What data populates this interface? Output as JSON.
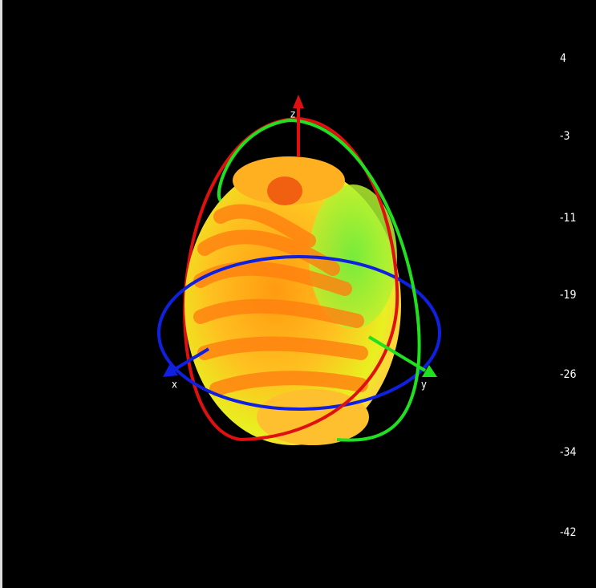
{
  "scale": {
    "labels": [
      "4",
      "-3",
      "-11",
      "-19",
      "-26",
      "-34",
      "-42"
    ]
  },
  "axes": {
    "z": "z",
    "x": "x",
    "y": "y"
  }
}
